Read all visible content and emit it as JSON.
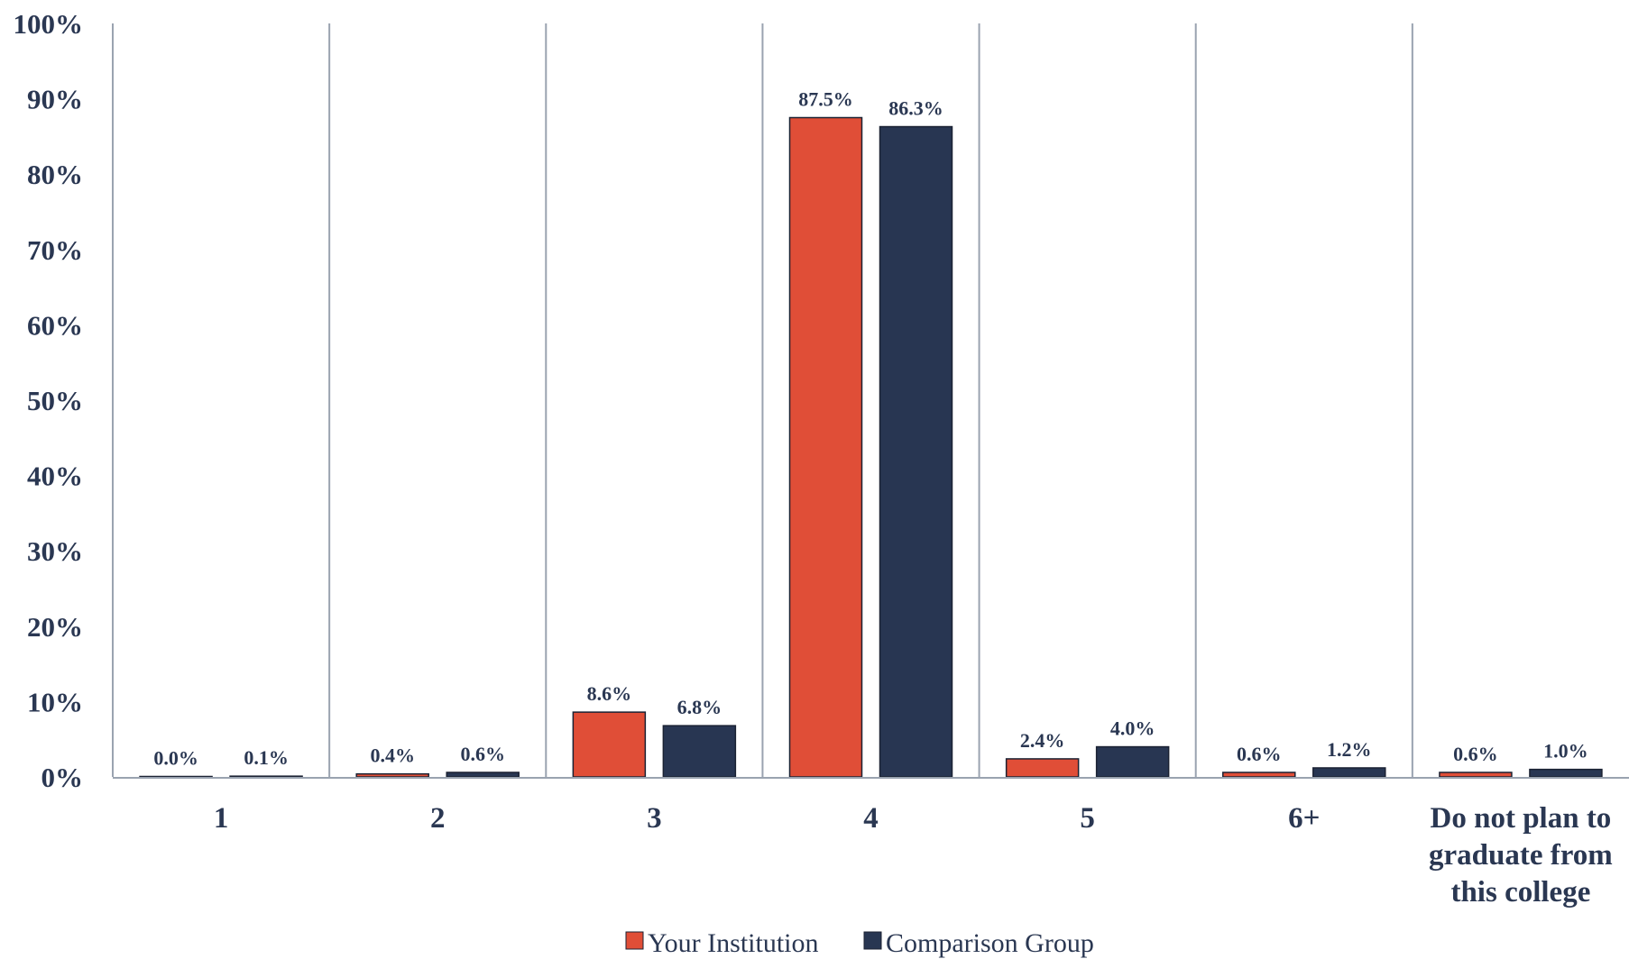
{
  "chart_data": {
    "type": "bar",
    "categories": [
      "1",
      "2",
      "3",
      "4",
      "5",
      "6+",
      "Do not plan to graduate from this college"
    ],
    "category_lines": [
      [
        "1"
      ],
      [
        "2"
      ],
      [
        "3"
      ],
      [
        "4"
      ],
      [
        "5"
      ],
      [
        "6+"
      ],
      [
        "Do not plan to",
        "graduate from",
        "this college"
      ]
    ],
    "series": [
      {
        "name": "Your Institution",
        "color": "#e04e37",
        "values": [
          0.0,
          0.4,
          8.6,
          87.5,
          2.4,
          0.6,
          0.6
        ],
        "labels": [
          "0.0%",
          "0.4%",
          "8.6%",
          "87.5%",
          "2.4%",
          "0.6%",
          "0.6%"
        ]
      },
      {
        "name": "Comparison Group",
        "color": "#283652",
        "values": [
          0.1,
          0.6,
          6.8,
          86.3,
          4.0,
          1.2,
          1.0
        ],
        "labels": [
          "0.1%",
          "0.6%",
          "6.8%",
          "86.3%",
          "4.0%",
          "1.2%",
          "1.0%"
        ]
      }
    ],
    "y_ticks": [
      "0%",
      "10%",
      "20%",
      "30%",
      "40%",
      "50%",
      "60%",
      "70%",
      "80%",
      "90%",
      "100%"
    ],
    "ylim": [
      0,
      100
    ],
    "legend_position": "bottom-center",
    "grid": "vertical category dividers"
  }
}
